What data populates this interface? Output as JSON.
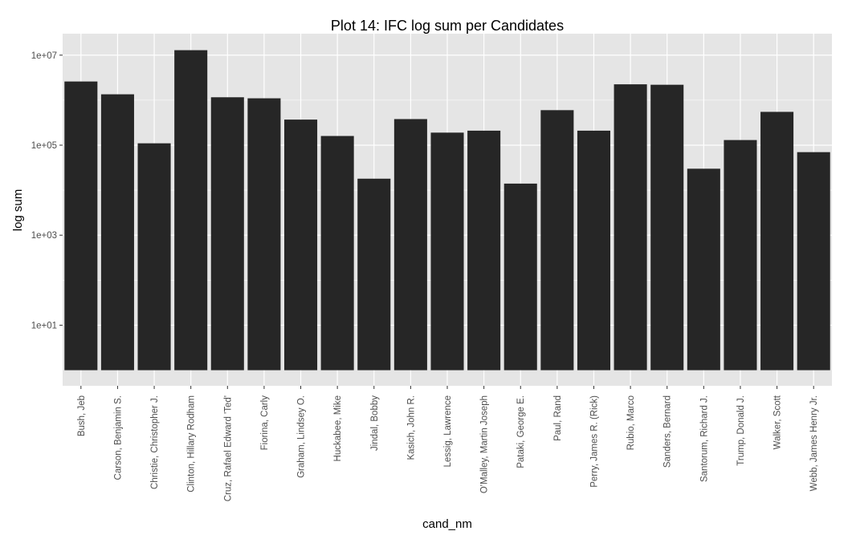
{
  "chart_data": {
    "type": "bar",
    "title": "Plot 14: IFC log sum per Candidates",
    "xlabel": "cand_nm",
    "ylabel": "log sum",
    "y_scale": "log10",
    "ylim": [
      0.45,
      30000000
    ],
    "yticks": [
      10,
      1000,
      100000,
      10000000
    ],
    "ytick_labels": [
      "1e+01",
      "1e+03",
      "1e+05",
      "1e+07"
    ],
    "bar_color": "#262626",
    "panel_color": "#e5e5e5",
    "grid_color": "#ffffff",
    "grid": true,
    "legend": "none",
    "categories": [
      "Bush, Jeb",
      "Carson, Benjamin S.",
      "Christie, Christopher J.",
      "Clinton, Hillary Rodham",
      "Cruz, Rafael Edward 'Ted'",
      "Fiorina, Carly",
      "Graham, Lindsey O.",
      "Huckabee, Mike",
      "Jindal, Bobby",
      "Kasich, John R.",
      "Lessig, Lawrence",
      "O'Malley, Martin Joseph",
      "Pataki, George E.",
      "Paul, Rand",
      "Perry, James R. (Rick)",
      "Rubio, Marco",
      "Sanders, Bernard",
      "Santorum, Richard J.",
      "Trump, Donald J.",
      "Walker, Scott",
      "Webb, James Henry Jr."
    ],
    "values": [
      2600000,
      1350000,
      110000,
      12900000,
      1160000,
      1100000,
      370000,
      160000,
      18000,
      380000,
      190000,
      210000,
      14000,
      600000,
      210000,
      2250000,
      2200000,
      30000,
      130000,
      550000,
      70000
    ]
  }
}
